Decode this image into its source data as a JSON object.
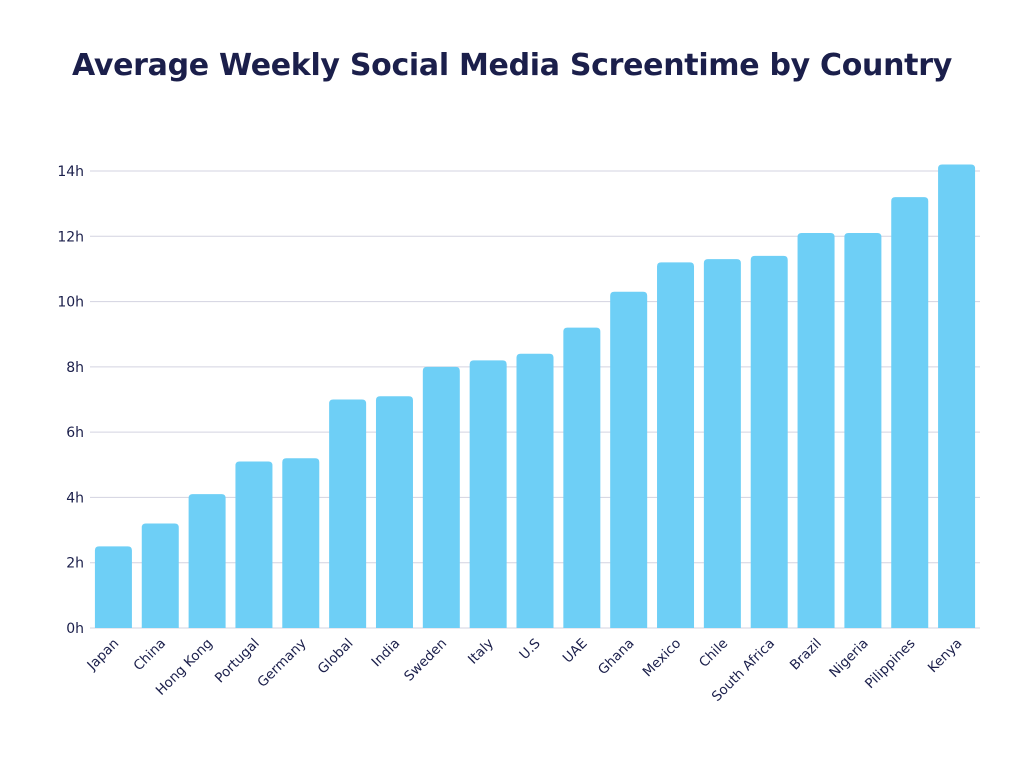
{
  "chart_data": {
    "type": "bar",
    "title": "Average Weekly Social Media Screentime by Country",
    "xlabel": "",
    "ylabel": "",
    "categories": [
      "Japan",
      "China",
      "Hong Kong",
      "Portugal",
      "Germany",
      "Global",
      "India",
      "Sweden",
      "Italy",
      "U.S",
      "UAE",
      "Ghana",
      "Mexico",
      "Chile",
      "South Africa",
      "Brazil",
      "Nigeria",
      "Pilippines",
      "Kenya"
    ],
    "values": [
      2.5,
      3.2,
      4.1,
      5.1,
      5.2,
      7.0,
      7.1,
      8.0,
      8.2,
      8.4,
      9.2,
      10.3,
      11.2,
      11.3,
      11.4,
      12.1,
      12.1,
      13.2,
      14.2
    ],
    "ylim": [
      0,
      14
    ],
    "yticks": [
      0,
      2,
      4,
      6,
      8,
      10,
      12,
      14
    ],
    "ytick_labels": [
      "0h",
      "2h",
      "4h",
      "6h",
      "8h",
      "10h",
      "12h",
      "14h"
    ],
    "grid": true,
    "colors": {
      "bar": "#6ecff6",
      "grid": "#d3d3e0",
      "text": "#1b1f4b"
    }
  }
}
